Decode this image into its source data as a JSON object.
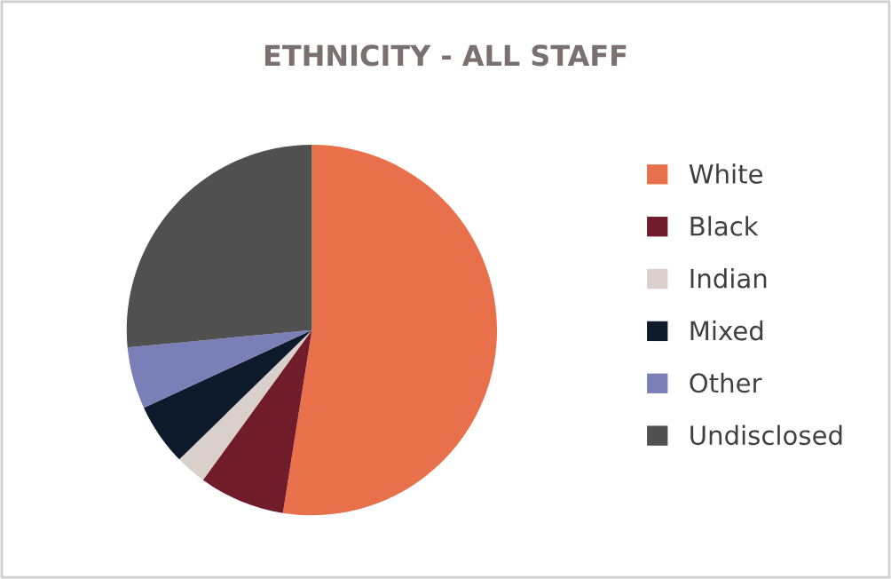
{
  "chart_data": {
    "type": "pie",
    "title": "ETHNICITY - ALL STAFF",
    "categories": [
      "White",
      "Black",
      "Indian",
      "Mixed",
      "Other",
      "Undisclosed"
    ],
    "values": [
      52.5,
      7.5,
      2.7,
      5.4,
      5.4,
      26.5
    ],
    "colors": [
      "#e8704a",
      "#701c2a",
      "#d9d0cc",
      "#0d1a2b",
      "#7a7fb8",
      "#505050"
    ],
    "legend": "right"
  }
}
